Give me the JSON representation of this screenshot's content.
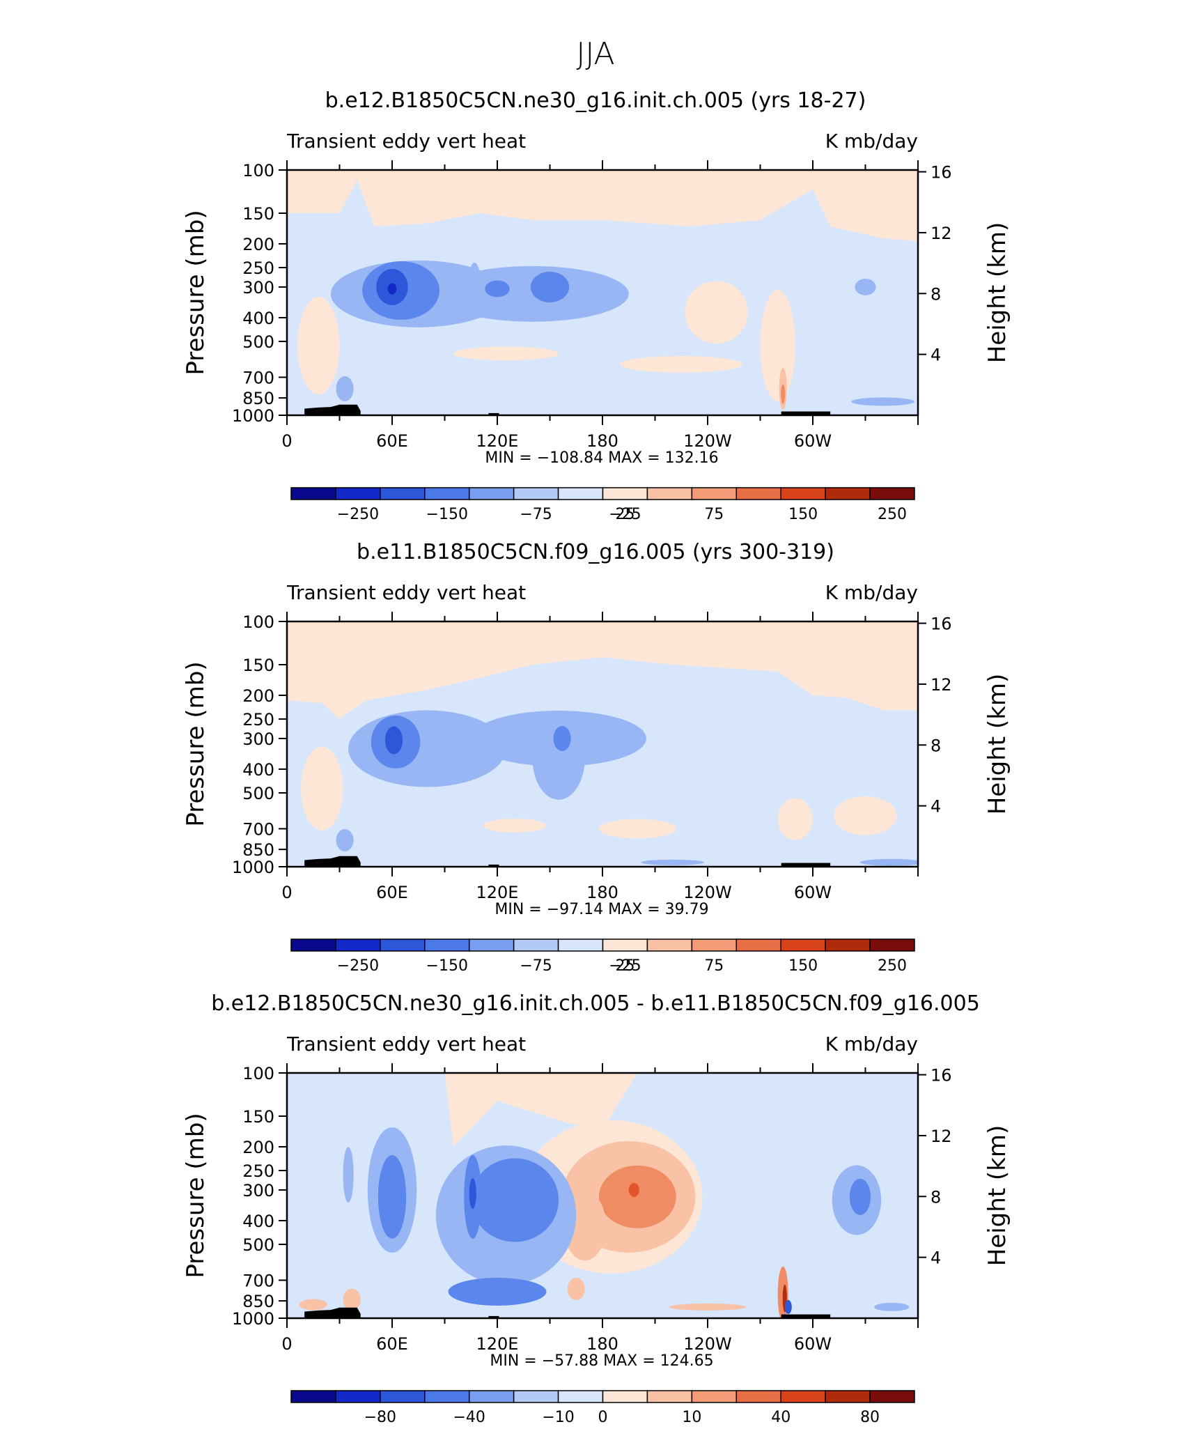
{
  "page_title": "JJA",
  "colors": {
    "blue_strong": "#2b57d8",
    "blue_mid": "#5b86ec",
    "blue_light": "#98b6f4",
    "blue_faint": "#d7e6fb",
    "orange_faint": "#fde6d6",
    "orange_light": "#f9c2a6",
    "orange_mid": "#f08c64",
    "orange_strong": "#e2542b"
  },
  "palette": [
    "#08088c",
    "#1428c8",
    "#2b57d8",
    "#4b7ae8",
    "#7a9ff0",
    "#b3c9f6",
    "#d7e6fb",
    "#fde6d6",
    "#f9c2a6",
    "#f39a76",
    "#e86f45",
    "#d9431c",
    "#b02a0c",
    "#7a0c0c"
  ],
  "chart_data": [
    {
      "type": "heatmap",
      "title": "b.e12.B1850C5CN.ne30_g16.init.ch.005 (yrs 18-27)",
      "left_label": "Transient eddy vert heat",
      "right_label": "K mb/day",
      "ylabel": "Pressure (mb)",
      "y2label": "Height (km)",
      "x_ticks": [
        "0",
        "60E",
        "120E",
        "180",
        "120W",
        "60W"
      ],
      "y_ticks": [
        "100",
        "150",
        "200",
        "250",
        "300",
        "400",
        "500",
        "700",
        "850",
        "1000"
      ],
      "y2_ticks": [
        "16",
        "12",
        "8",
        "4"
      ],
      "min_max_text": "MIN = −108.84   MAX = 132.16",
      "min": -108.84,
      "max": 132.16,
      "colorbar_labels": [
        "−250",
        "−150",
        "−75",
        "−25",
        "25",
        "75",
        "150",
        "250"
      ],
      "ylim": [
        1000,
        100
      ],
      "xlim": [
        0,
        360
      ]
    },
    {
      "type": "heatmap",
      "title": "b.e11.B1850C5CN.f09_g16.005 (yrs 300-319)",
      "left_label": "Transient eddy vert heat",
      "right_label": "K mb/day",
      "ylabel": "Pressure (mb)",
      "y2label": "Height (km)",
      "x_ticks": [
        "0",
        "60E",
        "120E",
        "180",
        "120W",
        "60W"
      ],
      "y_ticks": [
        "100",
        "150",
        "200",
        "250",
        "300",
        "400",
        "500",
        "700",
        "850",
        "1000"
      ],
      "y2_ticks": [
        "16",
        "12",
        "8",
        "4"
      ],
      "min_max_text": "MIN = −97.14   MAX =   39.79",
      "min": -97.14,
      "max": 39.79,
      "colorbar_labels": [
        "−250",
        "−150",
        "−75",
        "−25",
        "25",
        "75",
        "150",
        "250"
      ],
      "ylim": [
        1000,
        100
      ],
      "xlim": [
        0,
        360
      ]
    },
    {
      "type": "heatmap",
      "title": "b.e12.B1850C5CN.ne30_g16.init.ch.005 - b.e11.B1850C5CN.f09_g16.005",
      "left_label": "Transient eddy vert heat",
      "right_label": "K mb/day",
      "ylabel": "Pressure (mb)",
      "y2label": "Height (km)",
      "x_ticks": [
        "0",
        "60E",
        "120E",
        "180",
        "120W",
        "60W"
      ],
      "y_ticks": [
        "100",
        "150",
        "200",
        "250",
        "300",
        "400",
        "500",
        "700",
        "850",
        "1000"
      ],
      "y2_ticks": [
        "16",
        "12",
        "8",
        "4"
      ],
      "min_max_text": "MIN = −57.88   MAX = 124.65",
      "min": -57.88,
      "max": 124.65,
      "colorbar_labels": [
        "−80",
        "−40",
        "−10",
        "0",
        "10",
        "40",
        "80"
      ],
      "ylim": [
        1000,
        100
      ],
      "xlim": [
        0,
        360
      ]
    }
  ]
}
